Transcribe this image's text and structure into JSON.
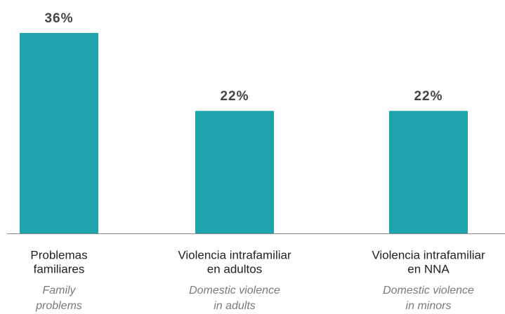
{
  "chart_data": {
    "type": "bar",
    "categories": [
      [
        "Problemas",
        "familiares"
      ],
      [
        "Violencia intrafamiliar",
        "en adultos"
      ],
      [
        "Violencia intrafamiliar",
        "en NNA"
      ]
    ],
    "translations": [
      [
        "Family",
        "problems"
      ],
      [
        "Domestic violence",
        "in adults"
      ],
      [
        "Domestic violence",
        "in minors"
      ]
    ],
    "values": [
      36,
      22,
      22
    ],
    "value_labels": [
      "36%",
      "22%",
      "22%"
    ],
    "color": "#1fa3ad"
  }
}
